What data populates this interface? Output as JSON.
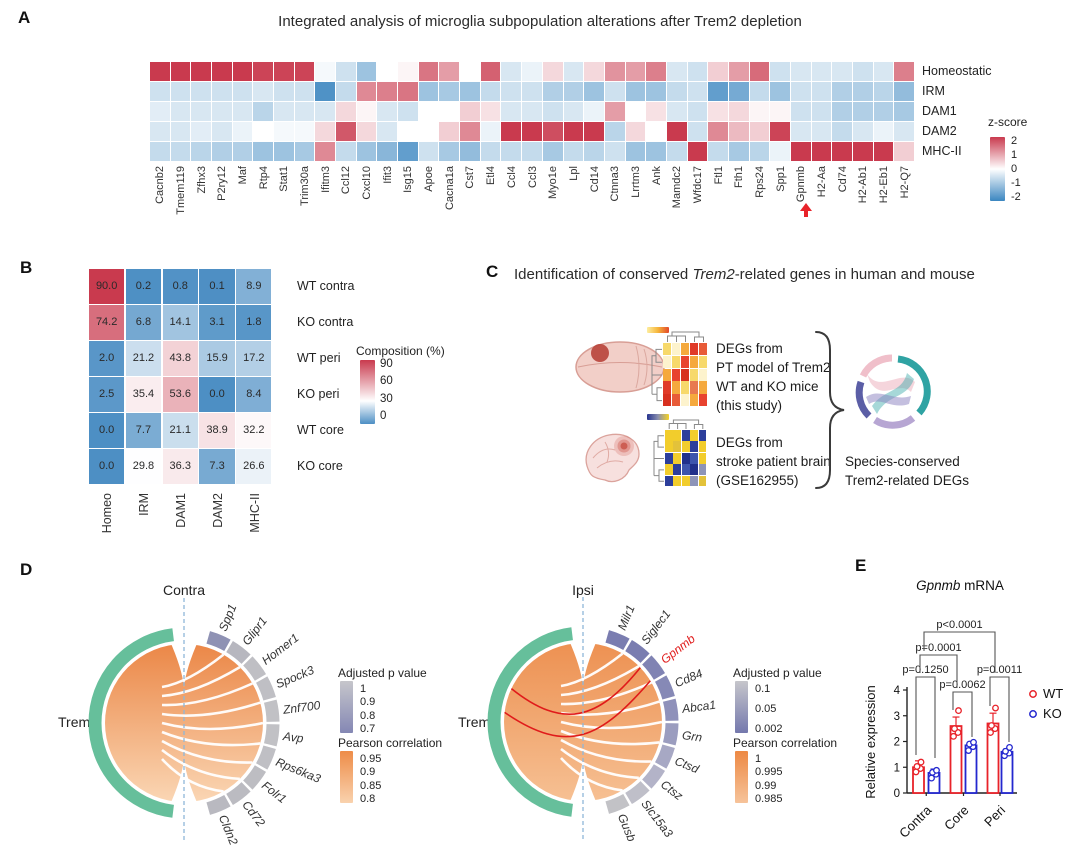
{
  "panelA": {
    "label": "A",
    "title": "Integrated analysis of microglia subpopulation alterations after Trem2 depletion",
    "legend_title": "z-score",
    "arrow_gene": "Gpnmb"
  },
  "panelB": {
    "label": "B",
    "legend_title": "Composition (%)"
  },
  "panelC": {
    "label": "C",
    "title_prefix": "Identification of conserved ",
    "title_italic": "Trem2",
    "title_suffix": "-related genes in human and mouse",
    "flow_mouse_text": "DEGs from\nPT model of Trem2\nWT and KO mice\n(this study)",
    "flow_human_text": "DEGs from\nstroke patient brain\n(GSE162955)",
    "result_text": "Species-conserved\nTrem2-related DEGs",
    "mouse_mini_heatmap_colors": [
      [
        "#f7d96b",
        "#fdf3cd",
        "#f5a93d",
        "#e03a28",
        "#e85b38"
      ],
      [
        "#fdf3cd",
        "#f7d96b",
        "#e8432f",
        "#f5a93d",
        "#f7d96b"
      ],
      [
        "#f5a93d",
        "#e8432f",
        "#d7301f",
        "#f7d96b",
        "#fdf3cd"
      ],
      [
        "#e03a28",
        "#f5a93d",
        "#f7d96b",
        "#e87a50",
        "#f5a93d"
      ],
      [
        "#d7301f",
        "#e85b38",
        "#fdf3cd",
        "#f5a93d",
        "#e8432f"
      ]
    ],
    "human_mini_heatmap_colors": [
      [
        "#f2cd2c",
        "#f2cd2c",
        "#2c3e9b",
        "#f2cd2c",
        "#2c3e9b"
      ],
      [
        "#f2cd2c",
        "#e3c23a",
        "#f2cd2c",
        "#2c3e9b",
        "#f2cd2c"
      ],
      [
        "#2c3e9b",
        "#f2cd2c",
        "#20308b",
        "#3d55ad",
        "#f2cd2c"
      ],
      [
        "#f2cd2c",
        "#2c3e9b",
        "#3d55ad",
        "#20308b",
        "#8d94b8"
      ],
      [
        "#2c3e9b",
        "#f2cd2c",
        "#f2cd2c",
        "#8d94b8",
        "#e3c23a"
      ]
    ]
  },
  "panelD": {
    "label": "D",
    "contra": {
      "title": "Contra",
      "hub": "Trem2"
    },
    "ipsi": {
      "title": "Ipsi",
      "hub": "Trem2"
    }
  },
  "panelE": {
    "label": "E"
  },
  "colors": {
    "heat_red": "#c93a4e",
    "heat_blue": "#3b86c0",
    "comp_blue": "#4d8fc4",
    "trem2_green": "#66bf9b",
    "wt_red": "#e8232a",
    "ko_blue": "#2428cf",
    "highlight_red": "#e01b1b",
    "dashed_line": "#8fb7d8"
  },
  "chart_data": [
    {
      "id": "A",
      "type": "heatmap",
      "title": "Integrated analysis of microglia subpopulation alterations after Trem2 depletion",
      "rows": [
        "Homeostatic",
        "IRM",
        "DAM1",
        "DAM2",
        "MHC-II"
      ],
      "columns": [
        "Cacnb2",
        "Tmem119",
        "Zfhx3",
        "P2ry12",
        "Maf",
        "Rtp4",
        "Stat1",
        "Trim30a",
        "Ifitm3",
        "Ccl12",
        "Cxcl10",
        "Ifit3",
        "Isg15",
        "Apoe",
        "Cacna1a",
        "Cst7",
        "Etl4",
        "Ccl4",
        "Ccl3",
        "Myo1e",
        "Lpl",
        "Cd14",
        "Ctnna3",
        "Lrrtm3",
        "Ank",
        "Mamdc2",
        "Wfdc17",
        "Ftl1",
        "Fth1",
        "Rps24",
        "Spp1",
        "Gpnmb",
        "H2-Aa",
        "Cd74",
        "H2-Ab1",
        "H2-Eb1",
        "H2-Q7"
      ],
      "values": [
        [
          2,
          2,
          2,
          2,
          2,
          1.9,
          1.9,
          1.9,
          -0.1,
          -0.5,
          -1,
          0,
          0.1,
          1.4,
          1,
          0,
          1.6,
          -0.4,
          -0.2,
          0.4,
          -0.4,
          0.4,
          1.1,
          1,
          1.3,
          -0.4,
          -0.5,
          0.5,
          1,
          1.5,
          -0.5,
          -0.4,
          -0.4,
          -0.4,
          -0.5,
          -0.4,
          1.3
        ],
        [
          -0.5,
          -0.5,
          -0.5,
          -0.5,
          -0.5,
          -0.4,
          -0.5,
          -0.5,
          -1.8,
          -0.6,
          1.2,
          1.3,
          1.4,
          -1,
          -0.9,
          -1,
          -0.6,
          -0.5,
          -0.5,
          -0.8,
          -0.8,
          -1,
          -0.5,
          -1,
          -1,
          -0.6,
          -0.5,
          -1.6,
          -1.4,
          -0.6,
          -1,
          -0.5,
          -0.5,
          -0.8,
          -0.8,
          -0.7,
          -1.1
        ],
        [
          -0.3,
          -0.4,
          -0.4,
          -0.4,
          -0.4,
          -0.7,
          -0.4,
          -0.4,
          -0.4,
          0.4,
          0.1,
          -0.4,
          -0.5,
          0,
          0,
          0.5,
          0.3,
          -0.4,
          -0.4,
          -0.5,
          -0.4,
          -0.2,
          1,
          0,
          0.3,
          -0.4,
          -0.5,
          0.3,
          0.4,
          0.1,
          0.1,
          -0.5,
          -0.5,
          -0.8,
          -0.8,
          -0.8,
          -0.9
        ],
        [
          -0.4,
          -0.4,
          -0.3,
          -0.4,
          -0.2,
          0,
          -0.1,
          -0.1,
          0.4,
          1.7,
          0.4,
          -0.4,
          0,
          0,
          0.5,
          1.2,
          -0.2,
          2.1,
          2.1,
          1.8,
          2.2,
          2,
          -0.7,
          0.4,
          0,
          2,
          -0.5,
          1.2,
          0.7,
          0.5,
          1.9,
          -0.4,
          -0.4,
          -0.6,
          -0.4,
          -0.2,
          -0.4
        ],
        [
          -0.6,
          -0.6,
          -0.7,
          -0.8,
          -0.8,
          -1,
          -1,
          -0.9,
          1.2,
          -0.6,
          -1,
          -1.2,
          -1.6,
          -0.5,
          -0.9,
          -1.1,
          -0.6,
          -0.6,
          -0.6,
          -0.9,
          -0.6,
          -0.7,
          -0.5,
          -1,
          -1,
          -0.6,
          2,
          -0.6,
          -0.9,
          -0.7,
          -0.2,
          2.1,
          2.1,
          2.1,
          2.1,
          2.1,
          0.5
        ]
      ],
      "colorbar": {
        "label": "z-score",
        "ticks": [
          2,
          1,
          0,
          -1,
          -2
        ],
        "range": [
          -2,
          2
        ]
      },
      "annotation": "red arrow marks Gpnmb"
    },
    {
      "id": "B",
      "type": "heatmap",
      "rows": [
        "WT contra",
        "KO contra",
        "WT peri",
        "KO peri",
        "WT core",
        "KO core"
      ],
      "columns": [
        "Homeo",
        "IRM",
        "DAM1",
        "DAM2",
        "MHC-II"
      ],
      "values": [
        [
          90.0,
          0.2,
          0.8,
          0.1,
          8.9
        ],
        [
          74.2,
          6.8,
          14.1,
          3.1,
          1.8
        ],
        [
          2.0,
          21.2,
          43.8,
          15.9,
          17.2
        ],
        [
          2.5,
          35.4,
          53.6,
          0.0,
          8.4
        ],
        [
          0.0,
          7.7,
          21.1,
          38.9,
          32.2
        ],
        [
          0.0,
          29.8,
          36.3,
          7.3,
          26.6
        ]
      ],
      "colorbar": {
        "label": "Composition (%)",
        "ticks": [
          90,
          60,
          30,
          0
        ],
        "range": [
          0,
          90
        ]
      }
    },
    {
      "id": "D-contra",
      "type": "chord",
      "title": "Contra",
      "hub": "Trem2",
      "genes": [
        "Spp1",
        "Glipr1",
        "Homer1",
        "Spock3",
        "Znf700",
        "Avp",
        "Rps6ka3",
        "Folr1",
        "Cd72",
        "Cldn2"
      ],
      "arc_colors": [
        "#8f92b4",
        "#b7b7bf",
        "#bfbfc4",
        "#bfbfc4",
        "#c1c1c5",
        "#c1c1c5",
        "#bfbfc4",
        "#bdbdc2",
        "#bbbbc1",
        "#b9b9c0"
      ],
      "disc_gradient": [
        "#eb8747",
        "#fad6b4"
      ],
      "legends": {
        "p": {
          "title": "Adjusted p value",
          "ticks": [
            "1",
            "0.9",
            "0.8",
            "0.7"
          ],
          "gradient": [
            "#c6c6cb",
            "#8487b4"
          ]
        },
        "r": {
          "title": "Pearson correlation",
          "ticks": [
            "0.95",
            "0.9",
            "0.85",
            "0.8"
          ],
          "gradient": [
            "#ee8c48",
            "#f9d2ae"
          ]
        }
      }
    },
    {
      "id": "D-ipsi",
      "type": "chord",
      "title": "Ipsi",
      "hub": "Trem2",
      "highlight": "Gpnmb",
      "genes": [
        "Milr1",
        "Siglec1",
        "Gpnmb",
        "Cd84",
        "Abca1",
        "Grn",
        "Ctsd",
        "Ctsz",
        "Slc15a3",
        "Gusb"
      ],
      "arc_colors": [
        "#7a7db0",
        "#7a7db0",
        "#8083b3",
        "#8689b6",
        "#8f91ba",
        "#9b9dbf",
        "#a7a8c4",
        "#b3b3c8",
        "#bfbfc9",
        "#c2c2c6"
      ],
      "disc_gradient": [
        "#ed9152",
        "#f6c093"
      ],
      "legends": {
        "p": {
          "title": "Adjusted p value",
          "ticks": [
            "0.1",
            "0.05",
            "0.002"
          ],
          "gradient": [
            "#c6c6cb",
            "#7478ad"
          ]
        },
        "r": {
          "title": "Pearson correlation",
          "ticks": [
            "1",
            "0.995",
            "0.99",
            "0.985"
          ],
          "gradient": [
            "#ed8944",
            "#f6c39a"
          ]
        }
      }
    },
    {
      "id": "E",
      "type": "bar",
      "title_italic": "Gpnmb",
      "title_suffix": " mRNA",
      "ylabel": "Relative expression",
      "ylim": [
        0,
        4
      ],
      "yticks": [
        0,
        1,
        2,
        3,
        4
      ],
      "categories": [
        "Contra",
        "Core",
        "Peri"
      ],
      "series": [
        {
          "name": "WT",
          "color": "#e8232a",
          "means": [
            1.0,
            2.6,
            2.7
          ],
          "sd": [
            0.25,
            0.35,
            0.4
          ],
          "points": [
            [
              0.82,
              0.95,
              1.03,
              1.2
            ],
            [
              2.2,
              2.35,
              2.5,
              3.2
            ],
            [
              2.35,
              2.5,
              2.62,
              3.3
            ]
          ]
        },
        {
          "name": "KO",
          "color": "#2428cf",
          "means": [
            0.78,
            1.85,
            1.6
          ],
          "sd": [
            0.15,
            0.12,
            0.12
          ],
          "points": [
            [
              0.58,
              0.73,
              0.8,
              0.88
            ],
            [
              1.65,
              1.8,
              1.9,
              1.97
            ],
            [
              1.45,
              1.55,
              1.62,
              1.77
            ]
          ]
        }
      ],
      "pvalues": [
        {
          "label": "p=0.1250",
          "pair": "Contra WT vs Contra KO"
        },
        {
          "label": "p=0.0062",
          "pair": "Core WT vs Core KO"
        },
        {
          "label": "p=0.0011",
          "pair": "Peri WT vs Peri KO"
        },
        {
          "label": "p=0.0001",
          "pair": "Contra WT vs Core WT"
        },
        {
          "label": "p<0.0001",
          "pair": "Contra WT vs Peri WT"
        }
      ],
      "legend": [
        "WT",
        "KO"
      ]
    }
  ]
}
